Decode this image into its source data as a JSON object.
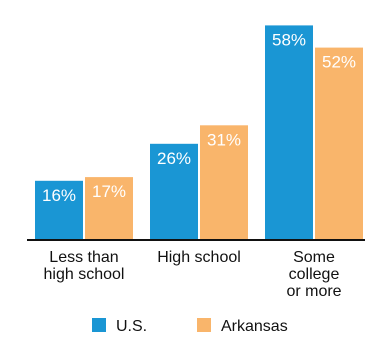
{
  "chart_data": {
    "type": "bar",
    "categories": [
      [
        "Less than",
        "high school"
      ],
      [
        "High school"
      ],
      [
        "Some",
        "college",
        "or more"
      ]
    ],
    "series": [
      {
        "name": "U.S.",
        "values": [
          16,
          26,
          58
        ],
        "labels": [
          "16%",
          "26%",
          "58%"
        ]
      },
      {
        "name": "Arkansas",
        "values": [
          17,
          31,
          52
        ],
        "labels": [
          "17%",
          "31%",
          "52%"
        ]
      }
    ],
    "ylim": [
      0,
      60
    ],
    "grid": false,
    "legend_position": "bottom"
  },
  "colors": {
    "us": "#1a96d4",
    "arkansas": "#f9b56b",
    "baseline": "#111111"
  }
}
